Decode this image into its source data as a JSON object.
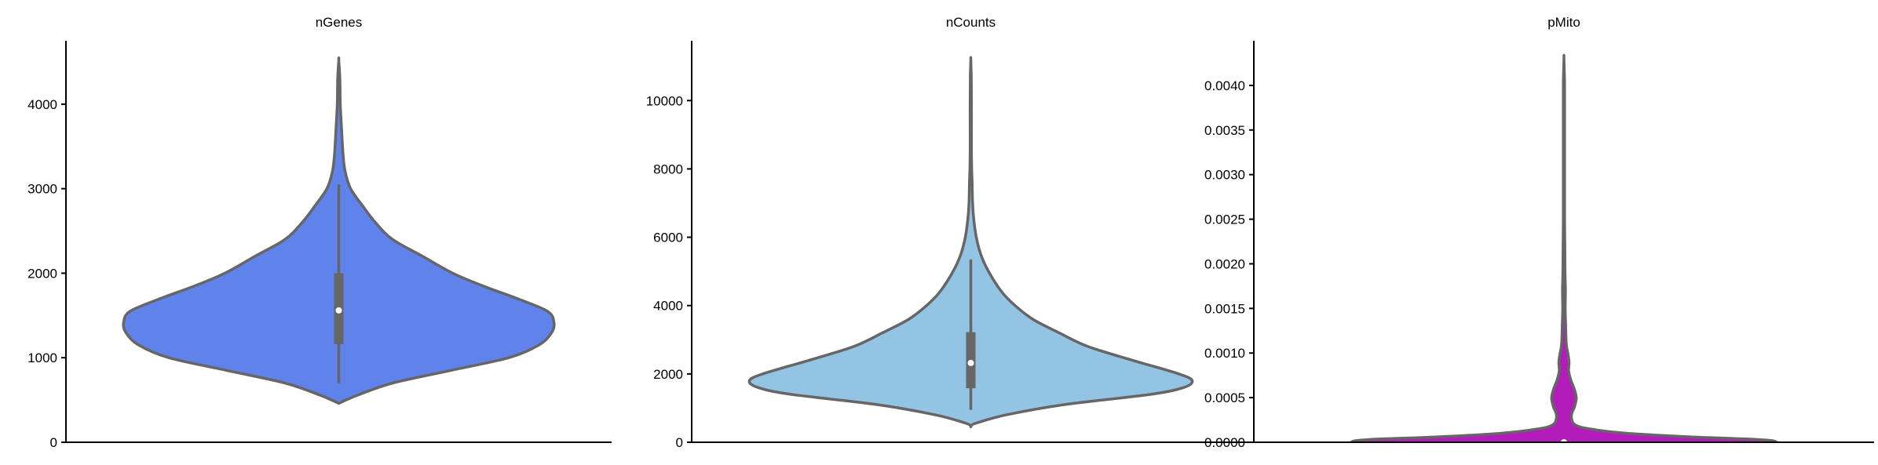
{
  "chart_data": [
    {
      "type": "violin",
      "title": "nGenes",
      "ylim": [
        0,
        4750
      ],
      "yticks": [
        0,
        1000,
        2000,
        3000,
        4000
      ],
      "yticklabels": [
        "0",
        "1000",
        "2000",
        "3000",
        "4000"
      ],
      "color": "#6082eb",
      "stats": {
        "min": 700,
        "q1": 1160,
        "median": 1560,
        "q3": 2000,
        "max": 3050
      },
      "density": [
        [
          460,
          0.0
        ],
        [
          560,
          0.09
        ],
        [
          700,
          0.25
        ],
        [
          850,
          0.52
        ],
        [
          1000,
          0.79
        ],
        [
          1150,
          0.93
        ],
        [
          1300,
          0.99
        ],
        [
          1420,
          1.0
        ],
        [
          1550,
          0.97
        ],
        [
          1700,
          0.83
        ],
        [
          1850,
          0.67
        ],
        [
          2000,
          0.53
        ],
        [
          2200,
          0.39
        ],
        [
          2400,
          0.25
        ],
        [
          2600,
          0.17
        ],
        [
          2800,
          0.11
        ],
        [
          3000,
          0.055
        ],
        [
          3200,
          0.03
        ],
        [
          3400,
          0.02
        ],
        [
          3700,
          0.013
        ],
        [
          4000,
          0.007
        ],
        [
          4300,
          0.005
        ],
        [
          4520,
          0.0
        ]
      ]
    },
    {
      "type": "violin",
      "title": "nCounts",
      "ylim": [
        0,
        11750
      ],
      "yticks": [
        0,
        2000,
        4000,
        6000,
        8000,
        10000
      ],
      "yticklabels": [
        "0",
        "2000",
        "4000",
        "6000",
        "8000",
        "10000"
      ],
      "color": "#93c4e4",
      "stats": {
        "min": 950,
        "q1": 1580,
        "median": 2320,
        "q3": 3220,
        "max": 5350
      },
      "density": [
        [
          450,
          0.0
        ],
        [
          550,
          0.02
        ],
        [
          800,
          0.16
        ],
        [
          1100,
          0.42
        ],
        [
          1400,
          0.81
        ],
        [
          1600,
          0.96
        ],
        [
          1800,
          1.0
        ],
        [
          2000,
          0.94
        ],
        [
          2400,
          0.73
        ],
        [
          2800,
          0.53
        ],
        [
          3200,
          0.4
        ],
        [
          3600,
          0.28
        ],
        [
          4000,
          0.2
        ],
        [
          4400,
          0.14
        ],
        [
          5000,
          0.08
        ],
        [
          5500,
          0.045
        ],
        [
          6000,
          0.025
        ],
        [
          6500,
          0.014
        ],
        [
          7000,
          0.008
        ],
        [
          7600,
          0.006
        ],
        [
          8000,
          0.004
        ],
        [
          8500,
          0.003
        ],
        [
          9200,
          0.003
        ],
        [
          10000,
          0.003
        ],
        [
          10700,
          0.002
        ],
        [
          11200,
          0.0
        ]
      ]
    },
    {
      "type": "violin",
      "title": "pMito",
      "ylim": [
        0,
        0.0045
      ],
      "yticks": [
        0,
        0.0005,
        0.001,
        0.0015,
        0.002,
        0.0025,
        0.003,
        0.0035,
        0.004
      ],
      "yticklabels": [
        "0.0000",
        "0.0005",
        "0.0010",
        "0.0015",
        "0.0020",
        "0.0025",
        "0.0030",
        "0.0035",
        "0.0040"
      ],
      "color": "#b31bbb",
      "stats": {
        "min": 0,
        "q1": 0,
        "median": 0,
        "q3": 0,
        "max": 0
      },
      "density": [
        [
          -0.0001,
          0.0
        ],
        [
          -5e-05,
          0.96
        ],
        [
          0.0,
          1.0
        ],
        [
          3e-05,
          0.92
        ],
        [
          6e-05,
          0.6
        ],
        [
          0.0001,
          0.3
        ],
        [
          0.00015,
          0.12
        ],
        [
          0.0002,
          0.05
        ],
        [
          0.0003,
          0.035
        ],
        [
          0.0004,
          0.05
        ],
        [
          0.0005,
          0.058
        ],
        [
          0.0006,
          0.048
        ],
        [
          0.0007,
          0.032
        ],
        [
          0.0008,
          0.022
        ],
        [
          0.0009,
          0.024
        ],
        [
          0.001,
          0.018
        ],
        [
          0.0011,
          0.011
        ],
        [
          0.0013,
          0.008
        ],
        [
          0.0015,
          0.006
        ],
        [
          0.0017,
          0.007
        ],
        [
          0.0019,
          0.005
        ],
        [
          0.0022,
          0.004
        ],
        [
          0.0025,
          0.003
        ],
        [
          0.003,
          0.003
        ],
        [
          0.0035,
          0.003
        ],
        [
          0.004,
          0.003
        ],
        [
          0.0043,
          0.0
        ]
      ]
    }
  ]
}
